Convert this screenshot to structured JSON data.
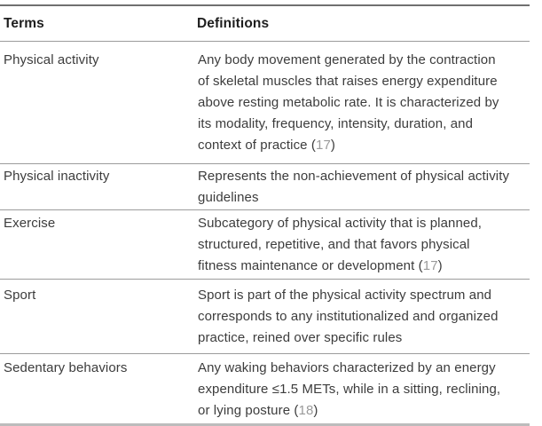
{
  "styles": {
    "citation_color": "#9a9a9a",
    "rule_dark": "#707070",
    "rule_mid": "#9c9c9c",
    "rule_light": "#bcbcbc"
  },
  "table": {
    "columns": [
      "Terms",
      "Definitions"
    ],
    "rows": [
      {
        "term": "Physical activity",
        "lines": [
          "Any body movement generated by the contraction",
          "of skeletal muscles that raises energy expenditure",
          "above resting metabolic rate. It is characterized by",
          "its modality, frequency, intensity, duration, and",
          "context of practice"
        ],
        "cite": "17"
      },
      {
        "term": "Physical inactivity",
        "lines": [
          "Represents the non-achievement of physical activity",
          "guidelines"
        ],
        "cite": ""
      },
      {
        "term": "Exercise",
        "lines": [
          "Subcategory of physical activity that is planned,",
          "structured, repetitive, and that favors physical",
          "fitness maintenance or development"
        ],
        "cite": "17"
      },
      {
        "term": "Sport",
        "lines": [
          "Sport is part of the physical activity spectrum and",
          "corresponds to any institutionalized and organized",
          "practice, reined over specific rules"
        ],
        "cite": ""
      },
      {
        "term": "Sedentary behaviors",
        "lines": [
          "Any waking behaviors characterized by an energy",
          "expenditure ≤1.5 METs, while in a sitting, reclining,",
          "or lying posture"
        ],
        "cite": "18"
      }
    ]
  }
}
